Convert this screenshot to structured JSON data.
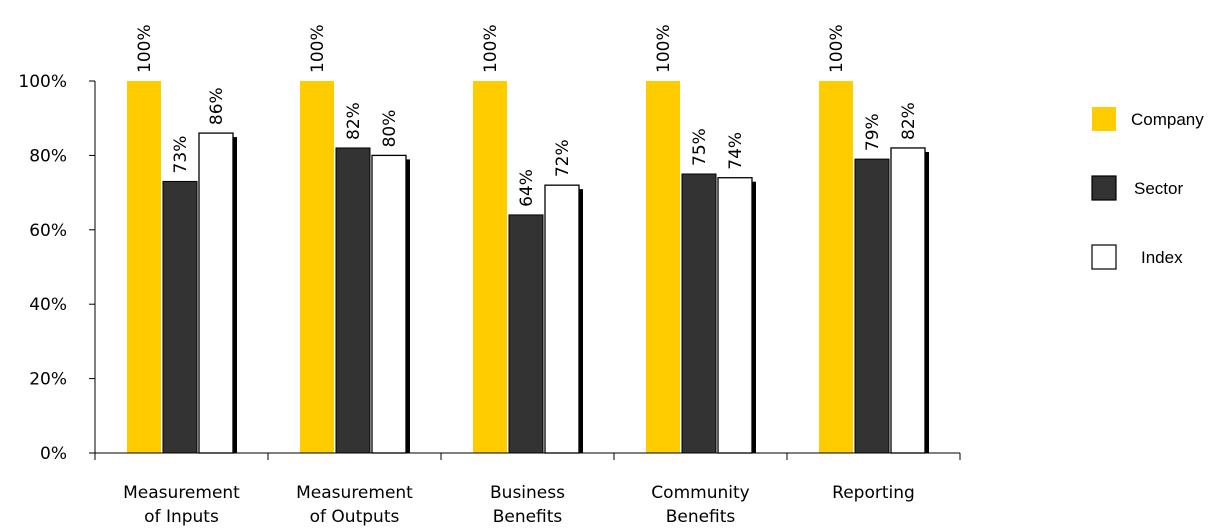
{
  "chart_data": {
    "type": "bar",
    "categories": [
      [
        "Measurement",
        "of Inputs"
      ],
      [
        "Measurement",
        "of Outputs"
      ],
      [
        "Business",
        "Benefits"
      ],
      [
        "Community",
        "Benefits"
      ],
      [
        "Reporting"
      ]
    ],
    "series": [
      {
        "name": "Company",
        "values": [
          100,
          100,
          100,
          100,
          100
        ],
        "labels": [
          "100%",
          "100%",
          "100%",
          "100%",
          "100%"
        ],
        "color": "#FFCC00"
      },
      {
        "name": "Sector",
        "values": [
          73,
          82,
          64,
          75,
          79
        ],
        "labels": [
          "73%",
          "82%",
          "64%",
          "75%",
          "79%"
        ],
        "color": "#333333"
      },
      {
        "name": "Index",
        "values": [
          86,
          80,
          72,
          74,
          82
        ],
        "labels": [
          "86%",
          "80%",
          "72%",
          "74%",
          "82%"
        ],
        "color": "#FFFFFF"
      }
    ],
    "yticks": [
      "0%",
      "20%",
      "40%",
      "60%",
      "80%",
      "100%"
    ],
    "ylim": [
      0,
      100
    ],
    "legend_position": "right",
    "grid": false
  }
}
